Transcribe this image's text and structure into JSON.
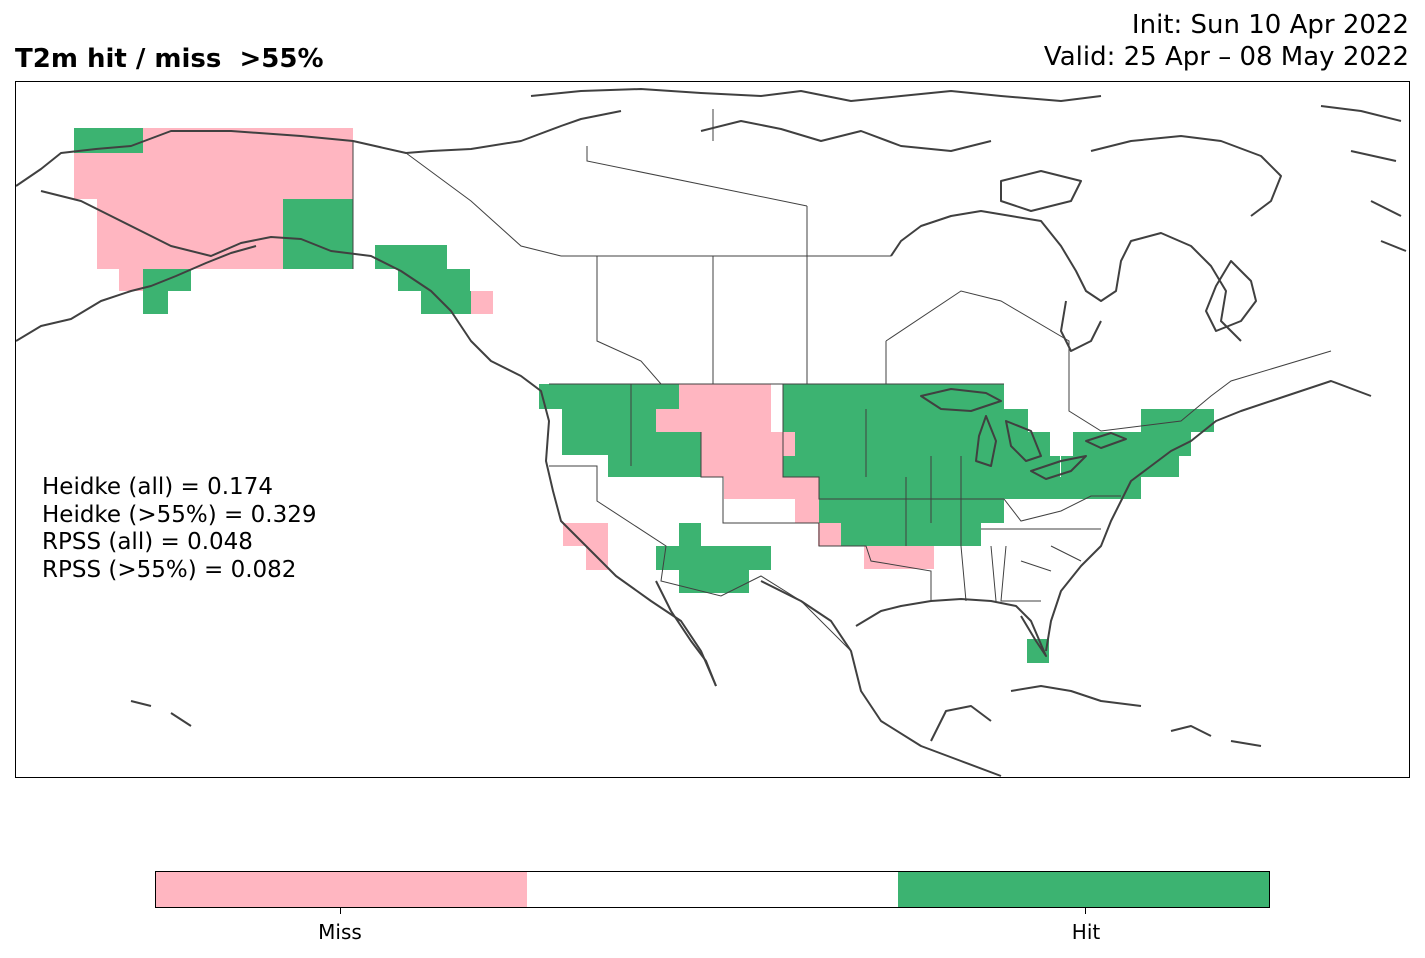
{
  "title": "T2m hit / miss  >55%",
  "init": "Init: Sun 10 Apr 2022",
  "valid": "Valid: 25 Apr – 08 May 2022",
  "stats": [
    "Heidke (all) = 0.174",
    "Heidke (>55%) = 0.329",
    "RPSS (all) = 0.048",
    "RPSS (>55%) = 0.082"
  ],
  "colorbar": {
    "colors": [
      "#ffb6c1",
      "#ffffff",
      "#3cb371"
    ],
    "labels": [
      "Miss",
      "Hit"
    ]
  }
}
